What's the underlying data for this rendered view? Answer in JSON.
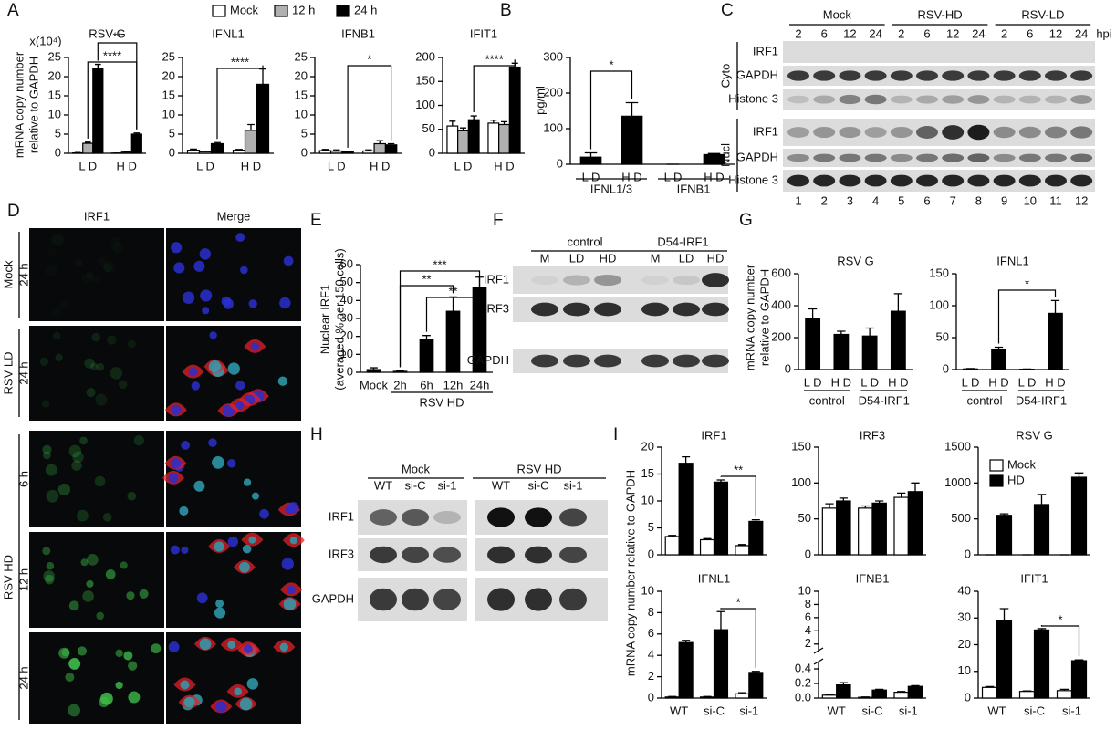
{
  "panel_labels": [
    "A",
    "B",
    "C",
    "D",
    "E",
    "F",
    "G",
    "H",
    "I"
  ],
  "chart_data": [
    {
      "type": "bar",
      "title": "RSV G",
      "unit_label": "x(10⁴)",
      "ylabel": [
        "mRNA copy number",
        "relative to GAPDH"
      ],
      "categories": [
        "L D",
        "H D"
      ],
      "ylim": [
        0,
        25
      ],
      "yticks": [
        0,
        5,
        10,
        15,
        20,
        25
      ],
      "annotations": [
        "**",
        "****"
      ],
      "series": [
        {
          "name": "Mock",
          "color": "#ffffff",
          "values": [
            0.1,
            0.05
          ],
          "errors": [
            0.1,
            0
          ]
        },
        {
          "name": "12 h",
          "color": "#b0b0b0",
          "values": [
            2.6,
            0.3
          ],
          "errors": [
            0.3,
            0.1
          ]
        },
        {
          "name": "24 h",
          "color": "#000000",
          "values": [
            22,
            5
          ],
          "errors": [
            1.2,
            0.3
          ]
        }
      ]
    },
    {
      "type": "bar",
      "title": "IFNL1",
      "categories": [
        "L D",
        "H D"
      ],
      "ylim": [
        0,
        25
      ],
      "yticks": [
        0,
        5,
        10,
        15,
        20,
        25
      ],
      "annotations": [
        "****"
      ],
      "series": [
        {
          "color": "#ffffff",
          "values": [
            0.8,
            0.8
          ],
          "errors": [
            0.3,
            0.2
          ]
        },
        {
          "color": "#b0b0b0",
          "values": [
            0.4,
            6
          ],
          "errors": [
            0.1,
            1.5
          ]
        },
        {
          "color": "#000000",
          "values": [
            2.5,
            18
          ],
          "errors": [
            0.3,
            4
          ]
        }
      ]
    },
    {
      "type": "bar",
      "title": "IFNB1",
      "categories": [
        "L D",
        "H D"
      ],
      "ylim": [
        0,
        25
      ],
      "yticks": [
        0,
        5,
        10,
        15,
        20,
        25
      ],
      "annotations": [
        "*"
      ],
      "series": [
        {
          "color": "#ffffff",
          "values": [
            0.7,
            0.6
          ],
          "errors": [
            0.3,
            0.3
          ]
        },
        {
          "color": "#b0b0b0",
          "values": [
            0.6,
            2.5
          ],
          "errors": [
            0.3,
            0.8
          ]
        },
        {
          "color": "#000000",
          "values": [
            0.4,
            2.2
          ],
          "errors": [
            0.1,
            0.3
          ]
        }
      ]
    },
    {
      "type": "bar",
      "title": "IFIT1",
      "categories": [
        "L D",
        "H D"
      ],
      "ylim": [
        0,
        200
      ],
      "yticks": [
        0,
        50,
        100,
        150,
        200
      ],
      "annotations": [
        "****"
      ],
      "series": [
        {
          "color": "#ffffff",
          "values": [
            57,
            63
          ],
          "errors": [
            10,
            6
          ]
        },
        {
          "color": "#b0b0b0",
          "values": [
            47,
            60
          ],
          "errors": [
            6,
            6
          ]
        },
        {
          "color": "#000000",
          "values": [
            70,
            180
          ],
          "errors": [
            8,
            8
          ]
        }
      ]
    },
    {
      "type": "bar",
      "ylabel": [
        "pg/ml"
      ],
      "categories": [
        "L D",
        "H D",
        "L D",
        "H D"
      ],
      "groups": [
        "IFNL1/3",
        "IFNB1"
      ],
      "ylim": [
        0,
        300
      ],
      "yticks": [
        0,
        100,
        200,
        300
      ],
      "annotations": [
        "*"
      ],
      "series": [
        {
          "color": "#000000",
          "values": [
            20,
            135,
            0,
            27
          ],
          "errors": [
            12,
            38,
            0,
            3
          ]
        }
      ]
    },
    {
      "type": "bar",
      "ylabel": [
        "Nuclear  IRF1",
        "(averaged % per 150 cells)"
      ],
      "categories": [
        "Mock",
        "2h",
        "6h",
        "12h",
        "24h"
      ],
      "group_label": "RSV HD",
      "ylim": [
        0,
        60
      ],
      "yticks": [
        0,
        10,
        20,
        30,
        40,
        50,
        60
      ],
      "annotations": [
        "***",
        "**",
        "**"
      ],
      "series": [
        {
          "color": "#000000",
          "values": [
            1.5,
            0.5,
            18,
            34,
            47
          ],
          "errors": [
            1,
            0.3,
            2.5,
            8,
            6
          ]
        }
      ]
    },
    {
      "type": "bar",
      "title": "RSV G",
      "ylabel": [
        "mRNA copy number",
        "relative to GAPDH"
      ],
      "categories": [
        "L D",
        "H D",
        "L D",
        "H D"
      ],
      "groups": [
        "control",
        "D54-IRF1"
      ],
      "ylim": [
        0,
        600
      ],
      "yticks": [
        0,
        200,
        400,
        600
      ],
      "series": [
        {
          "color": "#000000",
          "values": [
            320,
            220,
            210,
            365
          ],
          "errors": [
            60,
            20,
            50,
            110
          ]
        }
      ]
    },
    {
      "type": "bar",
      "title": "IFNL1",
      "categories": [
        "L D",
        "H D",
        "L D",
        "H D"
      ],
      "groups": [
        "control",
        "D54-IRF1"
      ],
      "ylim": [
        0,
        150
      ],
      "yticks": [
        0,
        50,
        100,
        150
      ],
      "annotations": [
        "*"
      ],
      "series": [
        {
          "color": "#000000",
          "values": [
            1,
            31,
            0.5,
            88
          ],
          "errors": [
            0.5,
            4,
            0.3,
            20
          ]
        }
      ]
    },
    {
      "type": "bar",
      "title": "IRF1",
      "ylabel": [
        "mRNA copy number relative to GAPDH"
      ],
      "categories": [
        null,
        null,
        null
      ],
      "ylim": [
        0,
        20
      ],
      "yticks": [
        0,
        5,
        10,
        15,
        20
      ],
      "annotations": [
        "**"
      ],
      "series": [
        {
          "color": "#ffffff",
          "values": [
            3.4,
            2.8,
            1.7
          ],
          "errors": [
            0.2,
            0.2,
            0.2
          ]
        },
        {
          "color": "#000000",
          "values": [
            17,
            13.5,
            6.2
          ],
          "errors": [
            1.2,
            0.4,
            0.3
          ]
        }
      ]
    },
    {
      "type": "bar",
      "title": "IRF3",
      "categories": [
        null,
        null,
        null
      ],
      "ylim": [
        0,
        150
      ],
      "yticks": [
        0,
        50,
        100,
        150
      ],
      "series": [
        {
          "color": "#ffffff",
          "values": [
            65,
            65,
            80
          ],
          "errors": [
            6,
            3,
            6
          ]
        },
        {
          "color": "#000000",
          "values": [
            75,
            72,
            88
          ],
          "errors": [
            4,
            3,
            12
          ]
        }
      ]
    },
    {
      "type": "bar",
      "title": "RSV G",
      "categories": [
        null,
        null,
        null
      ],
      "ylim": [
        0,
        1500
      ],
      "yticks": [
        0,
        500,
        1000,
        1500
      ],
      "series": [
        {
          "name": "Mock",
          "color": "#ffffff",
          "values": [
            0,
            0,
            0
          ],
          "errors": [
            0,
            0,
            0
          ]
        },
        {
          "name": "HD",
          "color": "#000000",
          "values": [
            550,
            700,
            1080
          ],
          "errors": [
            20,
            140,
            60
          ]
        }
      ]
    },
    {
      "type": "bar",
      "title": "IFNL1",
      "categories": [
        "WT",
        "si-C",
        "si-1"
      ],
      "ylim": [
        0,
        10
      ],
      "yticks": [
        0,
        2,
        4,
        6,
        8,
        10
      ],
      "annotations": [
        "*"
      ],
      "series": [
        {
          "color": "#ffffff",
          "values": [
            0.1,
            0.1,
            0.4
          ],
          "errors": [
            0.05,
            0.05,
            0.1
          ]
        },
        {
          "color": "#000000",
          "values": [
            5.2,
            6.4,
            2.4
          ],
          "errors": [
            0.2,
            1.7,
            0.1
          ]
        }
      ]
    },
    {
      "type": "bar",
      "title": "IFNB1",
      "categories": [
        "WT",
        "si-C",
        "si-1"
      ],
      "ylim": [
        0,
        0.5
      ],
      "yticks": [
        {
          "value": 0,
          "label": "0.0"
        },
        0.2,
        0.4
      ],
      "upper_ylim": [
        1,
        10
      ],
      "upper_yticks": [
        2,
        4,
        6,
        8,
        10
      ],
      "series": [
        {
          "color": "#ffffff",
          "values": [
            0.04,
            0.01,
            0.08
          ],
          "errors": [
            0.01,
            0.005,
            0.01
          ]
        },
        {
          "color": "#000000",
          "values": [
            0.18,
            0.11,
            0.16
          ],
          "errors": [
            0.03,
            0.01,
            0.01
          ]
        }
      ]
    },
    {
      "type": "bar",
      "title": "IFIT1",
      "categories": [
        "WT",
        "si-C",
        "si-1"
      ],
      "ylim": [
        0,
        40
      ],
      "yticks": [
        0,
        10,
        20,
        30,
        40
      ],
      "annotations": [
        "*"
      ],
      "series": [
        {
          "color": "#ffffff",
          "values": [
            4,
            2.5,
            2.8
          ],
          "errors": [
            0.3,
            0.2,
            0.5
          ]
        },
        {
          "color": "#000000",
          "values": [
            29,
            25.5,
            14
          ],
          "errors": [
            4.5,
            0.5,
            0.3
          ]
        }
      ]
    }
  ],
  "blot_C": {
    "groups": [
      "Mock",
      "RSV-HD",
      "RSV-LD"
    ],
    "times": [
      "2",
      "6",
      "12",
      "24",
      "2",
      "6",
      "12",
      "24",
      "2",
      "6",
      "12",
      "24"
    ],
    "unit": "hpi",
    "fractions": [
      "Cyto",
      "Nucl"
    ],
    "rows": [
      "IRF1",
      "GAPDH",
      "Histone 3",
      "IRF1",
      "GAPDH",
      "Histone 3"
    ],
    "lanes": [
      "1",
      "2",
      "3",
      "4",
      "5",
      "6",
      "7",
      "8",
      "9",
      "10",
      "11",
      "12"
    ]
  },
  "blot_F": {
    "groups": [
      "control",
      "D54-IRF1"
    ],
    "lanes": [
      "M",
      "LD",
      "HD",
      "M",
      "LD",
      "HD"
    ],
    "rows": [
      "IRF1",
      "IRF3",
      "GAPDH"
    ]
  },
  "blot_H": {
    "groups": [
      "Mock",
      "RSV HD"
    ],
    "lanes": [
      "WT",
      "si-C",
      "si-1",
      "WT",
      "si-C",
      "si-1"
    ],
    "rows": [
      "IRF1",
      "IRF3",
      "GAPDH"
    ]
  },
  "micro_D": {
    "columns": [
      "IRF1",
      "Merge"
    ],
    "conditions": [
      "Mock",
      "RSV LD",
      "RSV HD"
    ],
    "times": [
      "24 h",
      "24 h",
      "6 h",
      "12 h",
      "24 h"
    ]
  }
}
